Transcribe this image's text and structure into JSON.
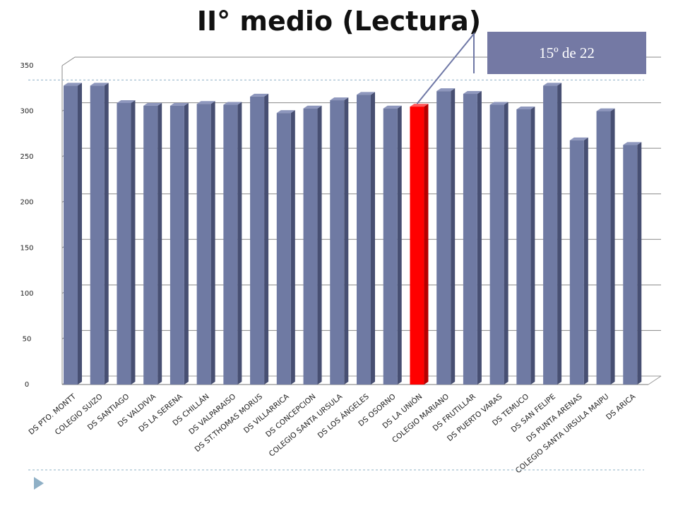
{
  "slide": {
    "title": "II° medio (Lectura)",
    "rank_label": "15º de 22"
  },
  "colors": {
    "bar": "#6f7aa3",
    "bar_side": "#474f72",
    "bar_top": "#8e97bd",
    "highlight": "#ff0000",
    "highlight_side": "#b50000",
    "highlight_top": "#ff5a5a",
    "callout": "#7479a4",
    "dashed_line": "#8fb0c6",
    "bottom_marker": "#8fb0c6"
  },
  "icons": {
    "bottom_marker": "triangle-right-icon"
  },
  "chart_data": {
    "type": "bar",
    "title": "II° medio (Lectura)",
    "xlabel": "",
    "ylabel": "",
    "ylim": [
      0,
      350
    ],
    "yticks": [
      0,
      50,
      100,
      150,
      200,
      250,
      300,
      350
    ],
    "grid": true,
    "highlight_index": 13,
    "reference_line": 328,
    "categories": [
      "DS PTO. MONTT",
      "COLEGIO SUIZO",
      "DS SANTIAGO",
      "DS VALDIVIA",
      "DS LA SERENA",
      "DS CHILLÁN",
      "DS VALPARAISO",
      "DS ST.THOMAS MORUS",
      "DS VILLARRICA",
      "DS CONCEPCION",
      "COLEGIO SANTA URSULA",
      "DS LOS ÁNGELES",
      "DS OSORNO",
      "DS LA UNIÓN",
      "COLEGIO MARIANO",
      "DS FRUTILLAR",
      "DS PUERTO VARAS",
      "DS TEMUCO",
      "DS SAN FELIPE",
      "DS PUNTA ARENAS",
      "COLEGIO SANTA URSULA MAIPU",
      "DS ARICA"
    ],
    "values": [
      328,
      328,
      309,
      306,
      306,
      308,
      307,
      316,
      298,
      303,
      312,
      318,
      303,
      305,
      322,
      319,
      307,
      302,
      328,
      268,
      300,
      263
    ]
  }
}
